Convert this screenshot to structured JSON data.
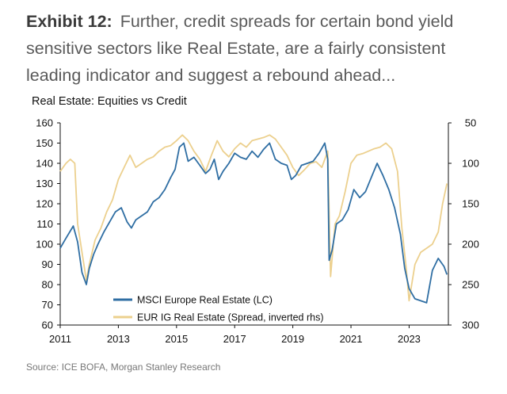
{
  "heading": {
    "label": "Exhibit 12:",
    "text": "Further, credit spreads for certain bond yield sensitive sectors like Real Estate, are a fairly consistent leading indicator and suggest a rebound ahead..."
  },
  "source": "Source: ICE BOFA, Morgan Stanley Research",
  "colors": {
    "equity": "#2f6ea3",
    "credit": "#ecd08e",
    "axis": "#111111"
  },
  "chart_data": {
    "type": "line",
    "title": "Real Estate: Equities vs Credit",
    "xlim": [
      2011,
      2024.35
    ],
    "xticks": [
      "2011",
      "2013",
      "2015",
      "2017",
      "2019",
      "2021",
      "2023"
    ],
    "ylim_left": [
      60,
      160
    ],
    "yticks_left": [
      "60",
      "70",
      "80",
      "90",
      "100",
      "110",
      "120",
      "130",
      "140",
      "150",
      "160"
    ],
    "ylim_right_inverted": [
      50,
      300
    ],
    "yticks_right": [
      "50",
      "100",
      "150",
      "200",
      "250",
      "300"
    ],
    "legend_position": "bottom-left",
    "grid": false,
    "series": [
      {
        "name": "MSCI Europe Real Estate (LC)",
        "axis": "left",
        "x": [
          2011.0,
          2011.2,
          2011.45,
          2011.6,
          2011.75,
          2011.9,
          2012.0,
          2012.15,
          2012.3,
          2012.5,
          2012.7,
          2012.9,
          2013.1,
          2013.3,
          2013.45,
          2013.6,
          2013.8,
          2014.0,
          2014.2,
          2014.4,
          2014.6,
          2014.8,
          2014.95,
          2015.1,
          2015.25,
          2015.4,
          2015.6,
          2015.8,
          2016.0,
          2016.15,
          2016.3,
          2016.45,
          2016.6,
          2016.8,
          2017.0,
          2017.2,
          2017.4,
          2017.6,
          2017.8,
          2018.0,
          2018.2,
          2018.4,
          2018.6,
          2018.8,
          2018.95,
          2019.1,
          2019.3,
          2019.5,
          2019.7,
          2019.9,
          2020.1,
          2020.2,
          2020.25,
          2020.35,
          2020.5,
          2020.7,
          2020.9,
          2021.1,
          2021.3,
          2021.5,
          2021.7,
          2021.9,
          2022.1,
          2022.3,
          2022.5,
          2022.7,
          2022.85,
          2023.0,
          2023.2,
          2023.4,
          2023.6,
          2023.8,
          2024.0,
          2024.2,
          2024.3
        ],
        "values": [
          98,
          103,
          109,
          101,
          86,
          80,
          88,
          95,
          100,
          106,
          111,
          116,
          118,
          111,
          108,
          112,
          114,
          116,
          121,
          123,
          127,
          133,
          137,
          148,
          150,
          141,
          143,
          139,
          135,
          137,
          142,
          132,
          136,
          140,
          145,
          143,
          142,
          146,
          143,
          147,
          150,
          142,
          140,
          139,
          132,
          134,
          139,
          140,
          141,
          145,
          150,
          142,
          92,
          97,
          110,
          112,
          117,
          127,
          123,
          126,
          133,
          140,
          134,
          127,
          118,
          105,
          88,
          78,
          73,
          72,
          71,
          87,
          93,
          89,
          85
        ]
      },
      {
        "name": "EUR IG Real Estate (Spread, inverted rhs)",
        "axis": "right",
        "x": [
          2011.0,
          2011.2,
          2011.35,
          2011.5,
          2011.6,
          2011.75,
          2011.9,
          2012.0,
          2012.2,
          2012.4,
          2012.6,
          2012.8,
          2013.0,
          2013.2,
          2013.4,
          2013.6,
          2013.8,
          2014.0,
          2014.2,
          2014.4,
          2014.6,
          2014.8,
          2015.0,
          2015.2,
          2015.4,
          2015.6,
          2015.8,
          2016.0,
          2016.2,
          2016.4,
          2016.6,
          2016.8,
          2017.0,
          2017.2,
          2017.4,
          2017.6,
          2017.8,
          2018.0,
          2018.2,
          2018.4,
          2018.6,
          2018.8,
          2019.0,
          2019.2,
          2019.4,
          2019.6,
          2019.8,
          2020.0,
          2020.1,
          2020.2,
          2020.3,
          2020.45,
          2020.6,
          2020.8,
          2021.0,
          2021.2,
          2021.4,
          2021.6,
          2021.8,
          2022.0,
          2022.2,
          2022.4,
          2022.6,
          2022.75,
          2022.9,
          2023.0,
          2023.2,
          2023.4,
          2023.6,
          2023.8,
          2024.0,
          2024.15,
          2024.3
        ],
        "values": [
          110,
          100,
          95,
          100,
          175,
          210,
          245,
          225,
          195,
          180,
          160,
          145,
          120,
          105,
          90,
          105,
          100,
          95,
          92,
          85,
          80,
          78,
          72,
          65,
          72,
          85,
          95,
          110,
          90,
          72,
          85,
          92,
          82,
          75,
          80,
          72,
          70,
          68,
          65,
          70,
          80,
          90,
          105,
          115,
          108,
          100,
          98,
          105,
          95,
          85,
          240,
          175,
          165,
          135,
          100,
          90,
          88,
          85,
          82,
          80,
          75,
          82,
          110,
          180,
          230,
          270,
          225,
          210,
          205,
          200,
          185,
          150,
          125
        ]
      }
    ]
  }
}
